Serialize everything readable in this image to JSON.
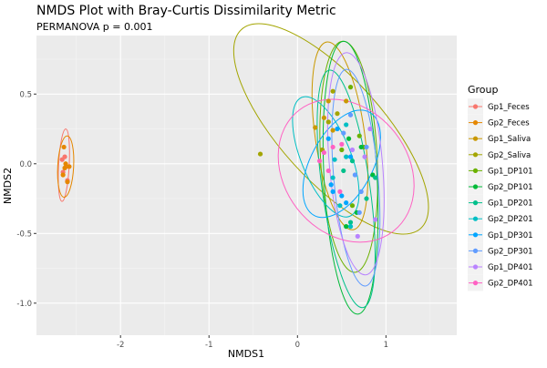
{
  "chart_data": {
    "type": "scatter",
    "title": "NMDS Plot with Bray-Curtis Dissimilarity Metric",
    "subtitle": "PERMANOVA p = 0.001",
    "xlabel": "NMDS1",
    "ylabel": "NMDS2",
    "xlim": [
      -2.95,
      1.8
    ],
    "ylim": [
      -1.23,
      0.92
    ],
    "xticks": [
      -2,
      -1,
      0,
      1
    ],
    "yticks": [
      0.5,
      0.0,
      -0.5,
      -1.0
    ],
    "xtick_labels": [
      "-2",
      "-1",
      "0",
      "1"
    ],
    "ytick_labels": [
      "0.5",
      "0.0",
      "-0.5",
      "-1.0"
    ],
    "grid": true,
    "background": "#EBEBEB",
    "legend": {
      "title": "Group",
      "position": "right"
    },
    "series": [
      {
        "name": "Gp1_Feces",
        "color": "#F8766D",
        "points": [
          [
            -2.63,
            0.05
          ],
          [
            -2.66,
            0.03
          ],
          [
            -2.65,
            -0.06
          ],
          [
            -2.6,
            -0.12
          ],
          [
            -2.61,
            -0.02
          ]
        ],
        "ellipse": {
          "cx": -2.64,
          "cy": -0.01,
          "rx": 0.06,
          "ry": 0.26,
          "angle": 3
        }
      },
      {
        "name": "Gp2_Feces",
        "color": "#E58700",
        "points": [
          [
            -2.64,
            0.12
          ],
          [
            -2.62,
            0.0
          ],
          [
            -2.58,
            -0.02
          ],
          [
            -2.65,
            -0.08
          ],
          [
            -2.6,
            -0.13
          ],
          [
            -2.63,
            -0.03
          ]
        ],
        "ellipse": {
          "cx": -2.62,
          "cy": -0.02,
          "rx": 0.09,
          "ry": 0.22,
          "angle": 3
        }
      },
      {
        "name": "Gp1_Saliva",
        "color": "#C99800",
        "points": [
          [
            0.2,
            0.26
          ],
          [
            0.35,
            0.45
          ],
          [
            0.55,
            0.45
          ],
          [
            0.3,
            0.33
          ],
          [
            0.4,
            0.24
          ]
        ],
        "ellipse": {
          "cx": 0.48,
          "cy": 0.2,
          "rx": 0.28,
          "ry": 0.68,
          "angle": -8
        }
      },
      {
        "name": "Gp2_Saliva",
        "color": "#A3A500",
        "points": [
          [
            -0.42,
            0.07
          ],
          [
            0.4,
            0.52
          ],
          [
            0.35,
            0.3
          ],
          [
            0.28,
            0.1
          ],
          [
            0.45,
            0.36
          ]
        ],
        "ellipse": {
          "cx": 0.38,
          "cy": 0.25,
          "rx": 0.58,
          "ry": 0.96,
          "angle": -42
        }
      },
      {
        "name": "Gp1_DP101",
        "color": "#6BB100",
        "points": [
          [
            0.6,
            0.55
          ],
          [
            0.5,
            0.1
          ],
          [
            0.7,
            0.2
          ],
          [
            0.75,
            0.12
          ],
          [
            0.62,
            -0.3
          ]
        ],
        "ellipse": {
          "cx": 0.58,
          "cy": 0.05,
          "rx": 0.32,
          "ry": 0.83,
          "angle": -3
        }
      },
      {
        "name": "Gp2_DP101",
        "color": "#00BA38",
        "points": [
          [
            0.67,
            -0.35
          ],
          [
            0.55,
            -0.45
          ],
          [
            0.85,
            -0.08
          ],
          [
            0.72,
            0.12
          ],
          [
            0.58,
            0.18
          ]
        ],
        "ellipse": {
          "cx": 0.6,
          "cy": -0.1,
          "rx": 0.3,
          "ry": 0.98,
          "angle": -3
        }
      },
      {
        "name": "Gp1_DP201",
        "color": "#00C08B",
        "points": [
          [
            0.52,
            -0.05
          ],
          [
            0.78,
            -0.25
          ],
          [
            0.88,
            -0.1
          ],
          [
            0.62,
            0.02
          ],
          [
            0.6,
            -0.42
          ]
        ],
        "ellipse": {
          "cx": 0.55,
          "cy": -0.18,
          "rx": 0.27,
          "ry": 0.86,
          "angle": -8
        }
      },
      {
        "name": "Gp2_DP201",
        "color": "#00BFC4",
        "points": [
          [
            0.4,
            -0.1
          ],
          [
            0.42,
            0.03
          ],
          [
            0.48,
            -0.3
          ],
          [
            0.55,
            0.05
          ],
          [
            0.55,
            0.28
          ],
          [
            0.6,
            -0.45
          ]
        ],
        "ellipse": {
          "cx": 0.32,
          "cy": 0.05,
          "rx": 0.28,
          "ry": 0.46,
          "angle": -22
        }
      },
      {
        "name": "Gp1_DP301",
        "color": "#00A5FF",
        "points": [
          [
            0.35,
            0.18
          ],
          [
            0.38,
            -0.15
          ],
          [
            0.4,
            -0.2
          ],
          [
            0.45,
            0.25
          ],
          [
            0.5,
            -0.23
          ],
          [
            0.55,
            -0.28
          ],
          [
            0.6,
            0.05
          ]
        ],
        "ellipse": {
          "cx": 0.5,
          "cy": 0.0,
          "rx": 0.35,
          "ry": 0.42,
          "angle": 28
        }
      },
      {
        "name": "Gp2_DP301",
        "color": "#619CFF",
        "points": [
          [
            0.65,
            -0.08
          ],
          [
            0.72,
            -0.2
          ],
          [
            0.78,
            0.12
          ],
          [
            0.7,
            -0.35
          ],
          [
            0.52,
            0.22
          ],
          [
            0.6,
            0.35
          ]
        ],
        "ellipse": {
          "cx": 0.66,
          "cy": -0.1,
          "rx": 0.25,
          "ry": 0.78,
          "angle": -5
        }
      },
      {
        "name": "Gp1_DP401",
        "color": "#B983FF",
        "points": [
          [
            0.68,
            -0.52
          ],
          [
            0.88,
            -0.4
          ],
          [
            0.76,
            0.05
          ],
          [
            0.82,
            0.25
          ],
          [
            0.62,
            0.1
          ]
        ],
        "ellipse": {
          "cx": 0.66,
          "cy": 0.0,
          "rx": 0.3,
          "ry": 0.8,
          "angle": -5
        }
      },
      {
        "name": "Gp2_DP401",
        "color": "#FF61C3",
        "points": [
          [
            0.25,
            0.02
          ],
          [
            0.3,
            0.08
          ],
          [
            0.4,
            0.12
          ],
          [
            0.5,
            0.14
          ],
          [
            0.35,
            -0.05
          ],
          [
            0.48,
            -0.2
          ]
        ],
        "ellipse": {
          "cx": 0.55,
          "cy": -0.05,
          "rx": 0.7,
          "ry": 0.55,
          "angle": -38
        }
      }
    ]
  }
}
